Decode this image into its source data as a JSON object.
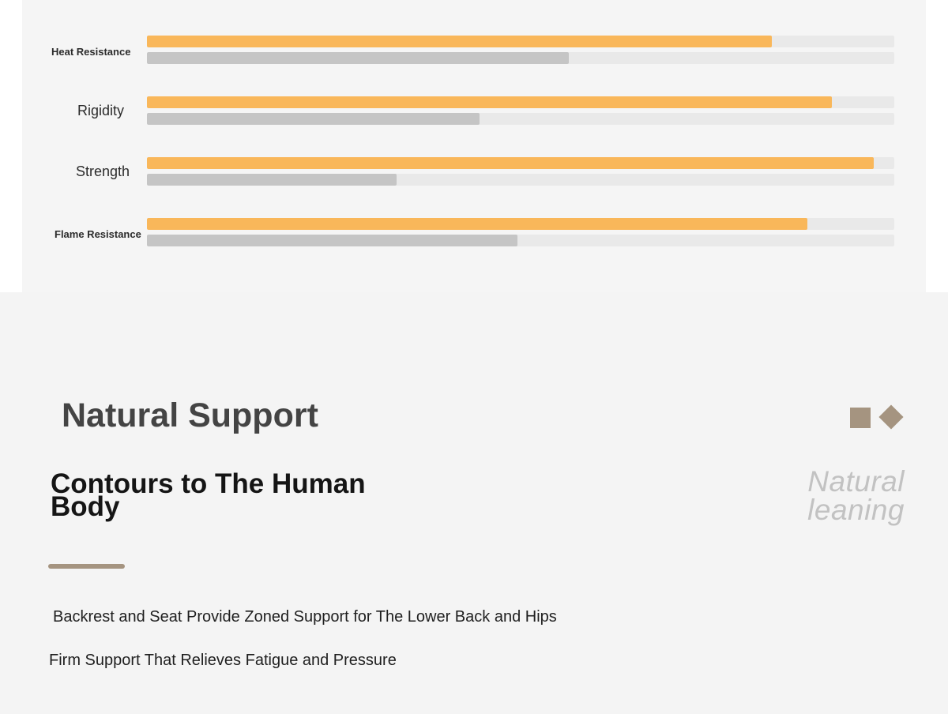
{
  "comparison": {
    "rows": [
      {
        "label": "Heat Resistance",
        "primary": 0.836,
        "secondary": 0.565
      },
      {
        "label": "Rigidity",
        "primary": 0.916,
        "secondary": 0.445
      },
      {
        "label": "Strength",
        "primary": 0.972,
        "secondary": 0.334
      },
      {
        "label": "Flame Resistance",
        "primary": 0.884,
        "secondary": 0.496
      }
    ],
    "colors": {
      "primary": "#f9b75a",
      "secondary": "#c5c5c5",
      "track": "#e9e9e9"
    }
  },
  "section": {
    "title": "Natural Support",
    "subheading": "Contours to The Human Body",
    "side_note": "Natural leaning",
    "features": [
      "Backrest and Seat Provide Zoned Support for The Lower Back and Hips",
      "Firm Support That Relieves Fatigue and Pressure"
    ],
    "accent_color": "#a59480"
  }
}
